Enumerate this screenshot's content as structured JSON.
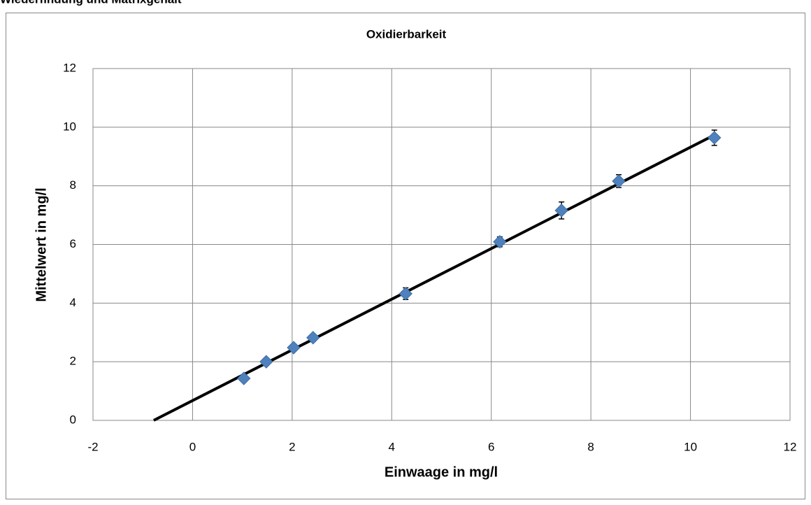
{
  "heading": "Wiederfindung und Matrixgehalt",
  "chart_data": {
    "type": "scatter",
    "title": "Oxidierbarkeit",
    "xlabel": "Einwaage in mg/l",
    "ylabel": "Mittelwert in mg/l",
    "xlim": [
      -2,
      12
    ],
    "xticks": [
      -2,
      0,
      2,
      4,
      6,
      8,
      10,
      12
    ],
    "ylim": [
      0,
      12
    ],
    "yticks": [
      0,
      2,
      4,
      6,
      8,
      10,
      12
    ],
    "grid": true,
    "series": [
      {
        "color": "#4f81bd",
        "x": [
          1.03,
          1.48,
          2.03,
          2.42,
          4.28,
          6.17,
          7.41,
          8.56,
          10.48
        ],
        "values": [
          1.43,
          2.0,
          2.48,
          2.82,
          4.32,
          6.09,
          7.16,
          8.16,
          9.64
        ],
        "errors": [
          0.1,
          0.12,
          0.1,
          0.1,
          0.2,
          0.17,
          0.29,
          0.22,
          0.26
        ]
      }
    ],
    "trendline": {
      "color": "#000000",
      "x": [
        -0.78,
        10.5
      ],
      "values": [
        0,
        9.75
      ]
    }
  }
}
